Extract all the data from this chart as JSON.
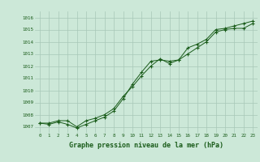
{
  "title": "Graphe pression niveau de la mer (hPa)",
  "bg_color": "#cce8d8",
  "grid_color": "#a8c8b8",
  "line_color": "#1a5c1a",
  "xlim": [
    -0.5,
    23.5
  ],
  "ylim": [
    1006.5,
    1016.5
  ],
  "yticks": [
    1007,
    1008,
    1009,
    1010,
    1011,
    1012,
    1013,
    1014,
    1015,
    1016
  ],
  "xticks": [
    0,
    1,
    2,
    3,
    4,
    5,
    6,
    7,
    8,
    9,
    10,
    11,
    12,
    13,
    14,
    15,
    16,
    17,
    18,
    19,
    20,
    21,
    22,
    23
  ],
  "series1": [
    1007.3,
    1007.3,
    1007.5,
    1007.5,
    1007.0,
    1007.5,
    1007.7,
    1008.0,
    1008.5,
    1009.5,
    1010.3,
    1011.2,
    1012.0,
    1012.6,
    1012.2,
    1012.5,
    1013.0,
    1013.5,
    1014.0,
    1014.8,
    1015.0,
    1015.1,
    1015.1,
    1015.5
  ],
  "series2": [
    1007.3,
    1007.2,
    1007.4,
    1007.2,
    1006.9,
    1007.2,
    1007.5,
    1007.8,
    1008.3,
    1009.3,
    1010.5,
    1011.5,
    1012.4,
    1012.5,
    1012.4,
    1012.5,
    1013.5,
    1013.8,
    1014.2,
    1015.0,
    1015.1,
    1015.3,
    1015.5,
    1015.7
  ],
  "ylabel_fontsize": 4.0,
  "xlabel_fontsize": 5.5,
  "title_fontsize": 6.0,
  "tick_fontsize": 4.2
}
